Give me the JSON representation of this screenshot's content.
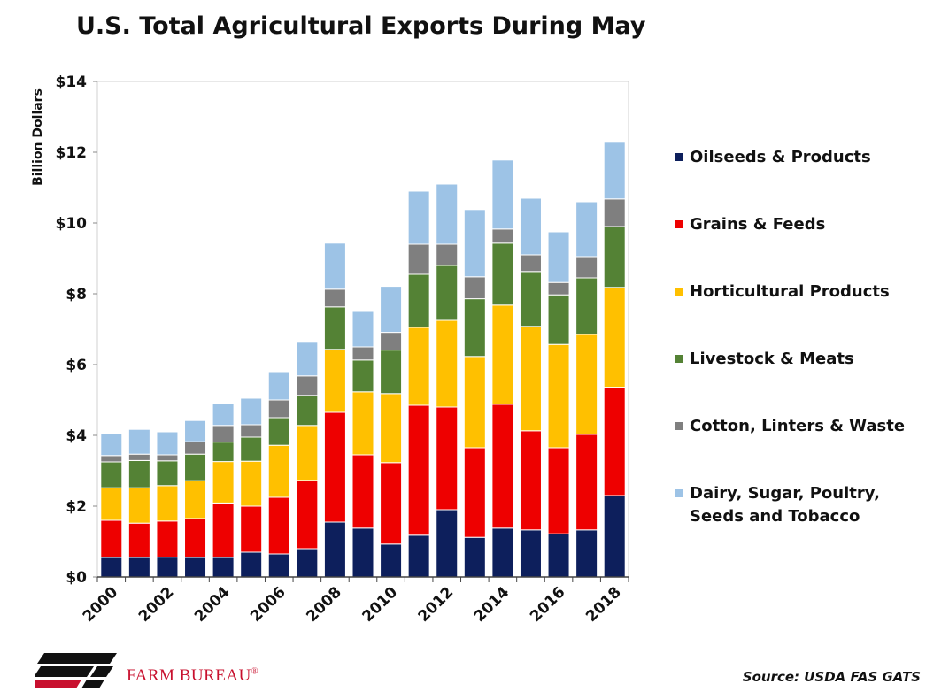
{
  "chart_data": {
    "type": "bar",
    "stacked": true,
    "title": "U.S. Total Agricultural Exports During May",
    "ylabel": "Billion Dollars",
    "xlabel": "",
    "ylim": [
      0,
      14
    ],
    "yticks": [
      0,
      2,
      4,
      6,
      8,
      10,
      12,
      14
    ],
    "ytick_labels": [
      "$0",
      "$2",
      "$4",
      "$6",
      "$8",
      "$10",
      "$12",
      "$14"
    ],
    "categories": [
      "2000",
      "2001",
      "2002",
      "2003",
      "2004",
      "2005",
      "2006",
      "2007",
      "2008",
      "2009",
      "2010",
      "2011",
      "2012",
      "2013",
      "2014",
      "2015",
      "2016",
      "2017",
      "2018"
    ],
    "xtick_labels": [
      "2000",
      "2002",
      "2004",
      "2006",
      "2008",
      "2010",
      "2012",
      "2014",
      "2016",
      "2018"
    ],
    "grid": false,
    "legend_position": "right",
    "series": [
      {
        "name": "Oilseeds & Products",
        "color": "#0d1f5c",
        "values": [
          0.55,
          0.55,
          0.56,
          0.55,
          0.55,
          0.7,
          0.65,
          0.8,
          1.55,
          1.38,
          0.93,
          1.18,
          1.9,
          1.12,
          1.38,
          1.33,
          1.22,
          1.33,
          2.3
        ]
      },
      {
        "name": "Grains & Feeds",
        "color": "#ee0000",
        "values": [
          1.05,
          0.97,
          1.02,
          1.1,
          1.54,
          1.3,
          1.6,
          1.93,
          3.1,
          2.07,
          2.3,
          3.67,
          2.9,
          2.53,
          3.5,
          2.8,
          2.43,
          2.7,
          3.06
        ]
      },
      {
        "name": "Horticultural Products",
        "color": "#ffc000",
        "values": [
          0.92,
          1.0,
          1.0,
          1.07,
          1.17,
          1.27,
          1.47,
          1.55,
          1.78,
          1.78,
          1.95,
          2.2,
          2.45,
          2.58,
          2.8,
          2.95,
          2.92,
          2.82,
          2.82
        ]
      },
      {
        "name": "Livestock & Meats",
        "color": "#548235",
        "values": [
          0.73,
          0.77,
          0.7,
          0.75,
          0.55,
          0.68,
          0.78,
          0.85,
          1.2,
          0.9,
          1.23,
          1.5,
          1.55,
          1.63,
          1.75,
          1.55,
          1.4,
          1.6,
          1.72
        ]
      },
      {
        "name": "Cotton, Linters & Waste",
        "color": "#7f7f7f",
        "values": [
          0.18,
          0.18,
          0.17,
          0.35,
          0.47,
          0.35,
          0.5,
          0.55,
          0.5,
          0.37,
          0.5,
          0.85,
          0.6,
          0.62,
          0.4,
          0.47,
          0.35,
          0.6,
          0.78
        ]
      },
      {
        "name": "Dairy, Sugar, Poultry, Seeds and Tobacco",
        "color": "#9dc3e6",
        "values": [
          0.62,
          0.7,
          0.65,
          0.6,
          0.62,
          0.75,
          0.8,
          0.95,
          1.3,
          1.0,
          1.3,
          1.5,
          1.7,
          1.9,
          1.95,
          1.6,
          1.43,
          1.55,
          1.6
        ]
      }
    ]
  },
  "brand": {
    "name": "FARM BUREAU",
    "registered_mark": "®"
  },
  "source": "Source: USDA FAS GATS"
}
